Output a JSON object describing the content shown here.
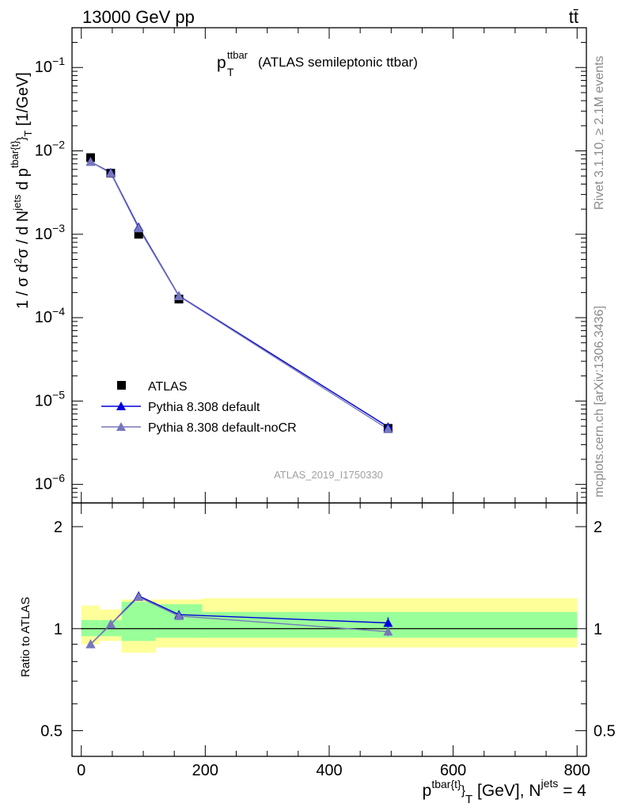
{
  "header": {
    "energy": "13000 GeV pp",
    "process": "tt̄"
  },
  "side_text": {
    "rivet": "Rivet 3.1.10, ≥ 2.1M events",
    "mcplots": "mcplots.cern.ch [arXiv:1306.3436]"
  },
  "plot_title": {
    "main": "p",
    "sup": "ttbar",
    "sub": "T",
    "rest": "(ATLAS semileptonic ttbar)"
  },
  "analysis_id": "ATLAS_2019_I1750330",
  "chart_data": [
    {
      "type": "line",
      "panel": "main",
      "yscale": "log",
      "ylim": [
        6e-07,
        0.3
      ],
      "xlim": [
        -15,
        815
      ],
      "ylabel_parts": {
        "a": "1 / σ d",
        "b": "2",
        "c": "σ / d N",
        "d": "jets",
        "e": " d p",
        "f": "tbar{t}",
        "g": "}",
        "h": "T",
        "i": " [1/GeV]"
      },
      "ytick_labels": [
        {
          "base": "10",
          "exp": "−1"
        },
        {
          "base": "10",
          "exp": "−2"
        },
        {
          "base": "10",
          "exp": "−3"
        },
        {
          "base": "10",
          "exp": "−4"
        },
        {
          "base": "10",
          "exp": "−5"
        },
        {
          "base": "10",
          "exp": "−6"
        }
      ],
      "ytick_values": [
        0.1,
        0.01,
        0.001,
        0.0001,
        1e-05,
        1e-06
      ],
      "series": [
        {
          "name": "ATLAS",
          "color": "#000000",
          "marker": "square",
          "x": [
            15,
            47.5,
            92.5,
            157.5,
            495
          ],
          "y": [
            0.0083,
            0.0054,
            0.001,
            0.000167,
            4.7e-06
          ]
        },
        {
          "name": "Pythia 8.308 default",
          "color": "#0000dd",
          "marker": "triangle",
          "x": [
            15,
            47.5,
            92.5,
            157.5,
            495
          ],
          "y": [
            0.0074,
            0.0055,
            0.00122,
            0.000183,
            4.9e-06
          ]
        },
        {
          "name": "Pythia 8.308 default-noCR",
          "color": "#7777bb",
          "marker": "triangle",
          "x": [
            15,
            47.5,
            92.5,
            157.5,
            495
          ],
          "y": [
            0.0074,
            0.0054,
            0.00118,
            0.000181,
            4.6e-06
          ]
        }
      ]
    },
    {
      "type": "line",
      "panel": "ratio",
      "yscale": "log",
      "ylim": [
        0.42,
        2.35
      ],
      "xlim": [
        -15,
        815
      ],
      "ylabel": "Ratio to ATLAS",
      "xlabel_parts": {
        "a": "p",
        "b": "tbar{t}",
        "c": "}",
        "d": "T",
        "e": " [GeV], N",
        "f": "jets",
        "g": " = 4"
      },
      "ytick_labels": [
        "2",
        "1",
        "0.5"
      ],
      "ytick_values": [
        2,
        1,
        0.5
      ],
      "xtick_labels": [
        "0",
        "200",
        "400",
        "600",
        "800"
      ],
      "xtick_values": [
        0,
        200,
        400,
        600,
        800
      ],
      "bands": [
        {
          "x0": 0,
          "x1": 30,
          "inner": [
            0.95,
            1.06
          ],
          "outer": [
            0.9,
            1.17
          ]
        },
        {
          "x0": 30,
          "x1": 65,
          "inner": [
            0.95,
            1.06
          ],
          "outer": [
            0.92,
            1.14
          ]
        },
        {
          "x0": 65,
          "x1": 120,
          "inner": [
            0.92,
            1.2
          ],
          "outer": [
            0.85,
            1.22
          ]
        },
        {
          "x0": 120,
          "x1": 195,
          "inner": [
            0.94,
            1.18
          ],
          "outer": [
            0.88,
            1.22
          ]
        },
        {
          "x0": 195,
          "x1": 800,
          "inner": [
            0.94,
            1.12
          ],
          "outer": [
            0.88,
            1.23
          ]
        }
      ],
      "series": [
        {
          "name": "Pythia 8.308 default",
          "color": "#0000dd",
          "x": [
            15,
            47.5,
            92.5,
            157.5,
            495
          ],
          "y": [
            0.9,
            1.03,
            1.25,
            1.1,
            1.04
          ],
          "err": [
            0.01,
            0.01,
            0.01,
            0.01,
            0.04
          ]
        },
        {
          "name": "Pythia 8.308 default-noCR",
          "color": "#7777bb",
          "x": [
            15,
            47.5,
            92.5,
            157.5,
            495
          ],
          "y": [
            0.9,
            1.03,
            1.24,
            1.09,
            0.98
          ],
          "err": [
            0.01,
            0.01,
            0.01,
            0.01,
            0.03
          ]
        }
      ],
      "colors": {
        "inner_band": "#99ff99",
        "outer_band": "#ffff99"
      }
    }
  ]
}
